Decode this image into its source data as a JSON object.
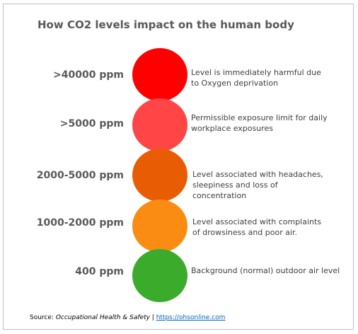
{
  "title": "How CO2 levels impact on the human body",
  "levels": [
    {
      "label": ">40000 ppm",
      "description": "Level is immediately harmful due\nto Oxygen deprivation",
      "color": "#ff0000"
    },
    {
      "label": ">5000 ppm",
      "description": "Permissible exposure limit for daily\nworkplace exposures",
      "color": "#ff4545"
    },
    {
      "label": "2000-5000 ppm",
      "description": "Level associated with headaches,\nsleepiness and loss of\nconcentration",
      "color": "#e85d04"
    },
    {
      "label": "1000-2000 ppm",
      "description": "Level associated with complaints\nof drowsiness and poor air.",
      "color": "#fb8c13"
    },
    {
      "label": "400 ppm",
      "description": "Background (normal) outdoor air level",
      "color": "#3aab2a"
    }
  ],
  "source": {
    "prefix": "Source: ",
    "publication": "Occupational Health & Safety",
    "separator": " | ",
    "link_text": "https://ohsonline.com"
  }
}
